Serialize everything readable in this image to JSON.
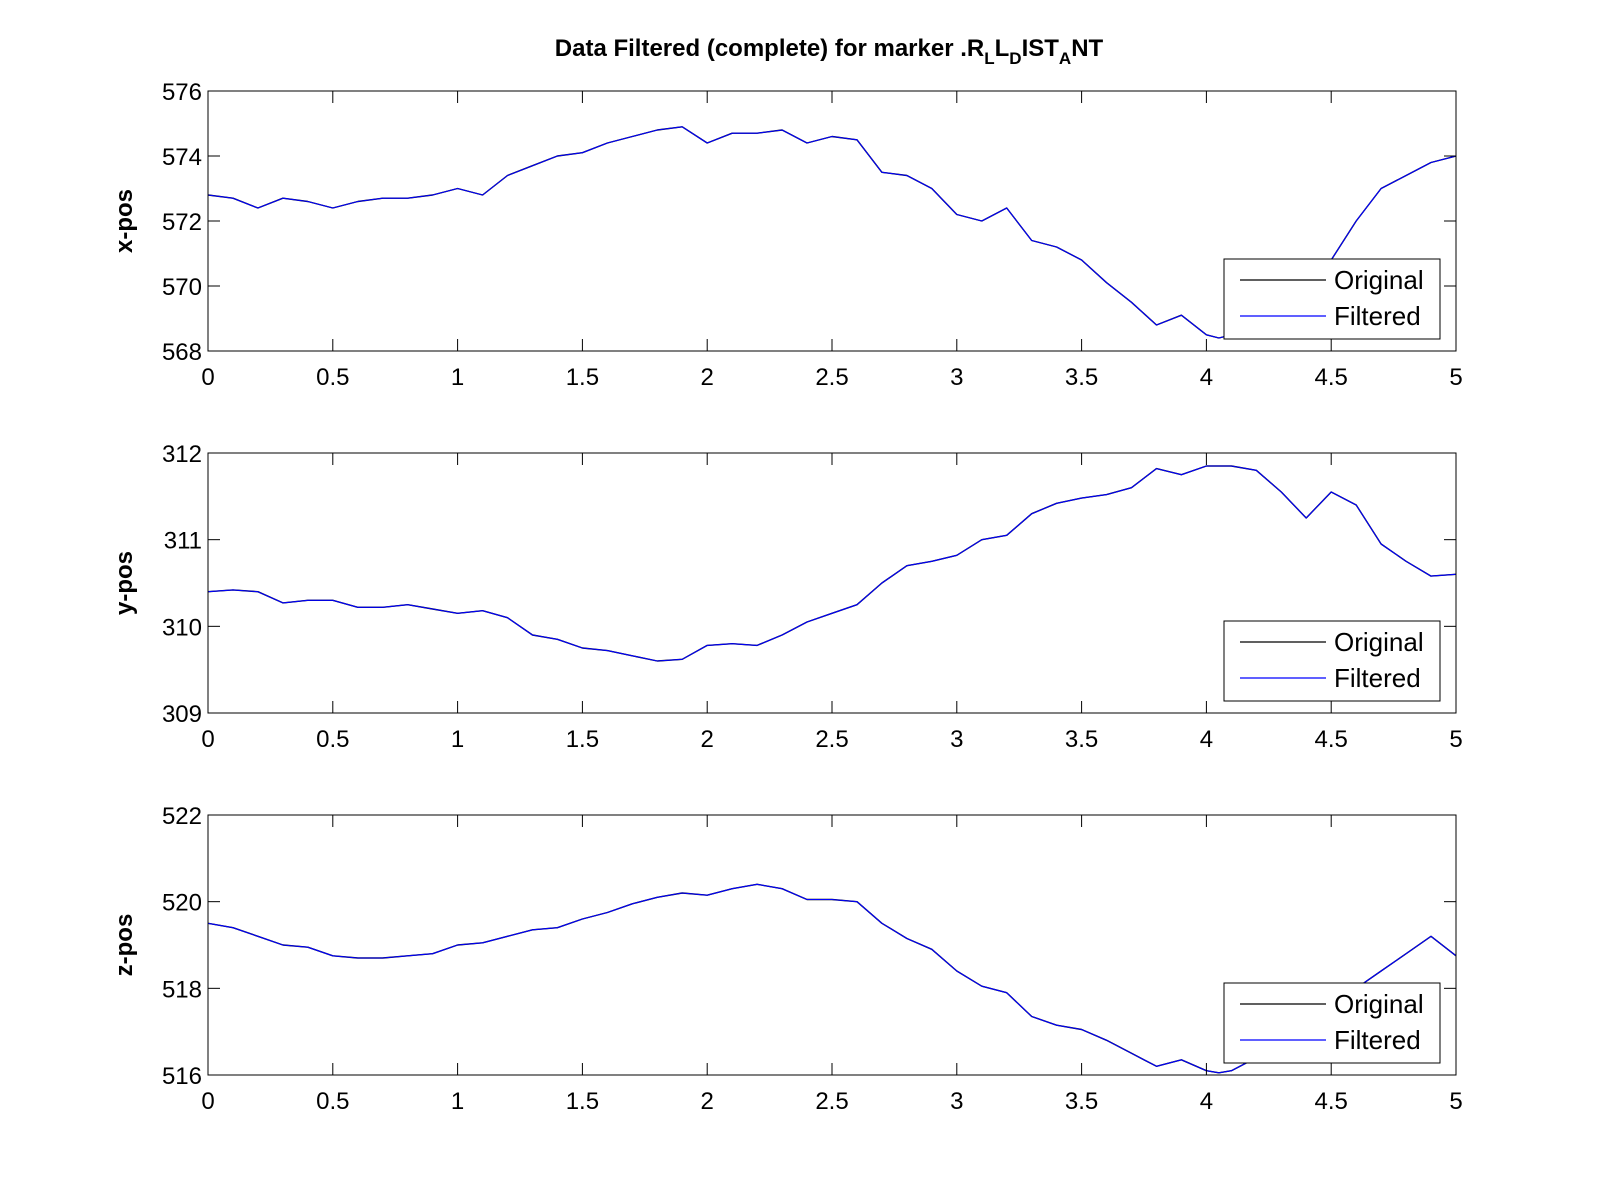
{
  "title": {
    "prefix": "Data Filtered (complete) for marker .R",
    "parts": [
      {
        "text": "L",
        "sub": true
      },
      {
        "text": "L",
        "sub": false
      },
      {
        "text": "D",
        "sub": true
      },
      {
        "text": "IST",
        "sub": false
      },
      {
        "text": "A",
        "sub": true
      },
      {
        "text": "NT",
        "sub": false
      }
    ]
  },
  "chart_data": [
    {
      "type": "line",
      "ylabel": "x-pos",
      "xlim": [
        0,
        5
      ],
      "ylim": [
        568,
        576
      ],
      "xticks": [
        0,
        0.5,
        1,
        1.5,
        2,
        2.5,
        3,
        3.5,
        4,
        4.5,
        5
      ],
      "xtick_labels": [
        "0",
        "0.5",
        "1",
        "1.5",
        "2",
        "2.5",
        "3",
        "3.5",
        "4",
        "4.5",
        "5"
      ],
      "yticks": [
        568,
        570,
        572,
        574,
        576
      ],
      "ytick_labels": [
        "568",
        "570",
        "572",
        "574",
        "576"
      ],
      "legend": {
        "placement": "bottom-right",
        "entries": [
          "Original",
          "Filtered"
        ]
      },
      "series": [
        {
          "name": "Original",
          "color": "#000000",
          "x": [
            0,
            0.1,
            0.2,
            0.3,
            0.4,
            0.5,
            0.6,
            0.7,
            0.8,
            0.9,
            1.0,
            1.1,
            1.2,
            1.3,
            1.4,
            1.5,
            1.6,
            1.7,
            1.8,
            1.9,
            2.0,
            2.1,
            2.2,
            2.3,
            2.4,
            2.5,
            2.6,
            2.7,
            2.8,
            2.9,
            3.0,
            3.1,
            3.2,
            3.3,
            3.4,
            3.5,
            3.6,
            3.7,
            3.8,
            3.9,
            4.0,
            4.05,
            4.1,
            4.2,
            4.3,
            4.4,
            4.5,
            4.6,
            4.7,
            4.8,
            4.9,
            5.0
          ],
          "y": [
            572.8,
            572.7,
            572.4,
            572.7,
            572.6,
            572.4,
            572.6,
            572.7,
            572.7,
            572.8,
            573.0,
            572.8,
            573.4,
            573.7,
            574.0,
            574.1,
            574.4,
            574.6,
            574.8,
            574.9,
            574.4,
            574.7,
            574.7,
            574.8,
            574.4,
            574.6,
            574.5,
            573.5,
            573.4,
            573.0,
            572.2,
            572.0,
            572.4,
            571.4,
            571.2,
            570.8,
            570.1,
            569.5,
            568.8,
            569.1,
            568.5,
            568.4,
            568.5,
            568.8,
            569.3,
            569.9,
            570.8,
            572.0,
            573.0,
            573.4,
            573.8,
            574.0
          ]
        },
        {
          "name": "Filtered",
          "color": "#0000ff",
          "x": [
            0,
            0.1,
            0.2,
            0.3,
            0.4,
            0.5,
            0.6,
            0.7,
            0.8,
            0.9,
            1.0,
            1.1,
            1.2,
            1.3,
            1.4,
            1.5,
            1.6,
            1.7,
            1.8,
            1.9,
            2.0,
            2.1,
            2.2,
            2.3,
            2.4,
            2.5,
            2.6,
            2.7,
            2.8,
            2.9,
            3.0,
            3.1,
            3.2,
            3.3,
            3.4,
            3.5,
            3.6,
            3.7,
            3.8,
            3.9,
            4.0,
            4.05,
            4.1,
            4.2,
            4.3,
            4.4,
            4.5,
            4.6,
            4.7,
            4.8,
            4.9,
            5.0
          ],
          "y": [
            572.8,
            572.7,
            572.4,
            572.7,
            572.6,
            572.4,
            572.6,
            572.7,
            572.7,
            572.8,
            573.0,
            572.8,
            573.4,
            573.7,
            574.0,
            574.1,
            574.4,
            574.6,
            574.8,
            574.9,
            574.4,
            574.7,
            574.7,
            574.8,
            574.4,
            574.6,
            574.5,
            573.5,
            573.4,
            573.0,
            572.2,
            572.0,
            572.4,
            571.4,
            571.2,
            570.8,
            570.1,
            569.5,
            568.8,
            569.1,
            568.5,
            568.4,
            568.5,
            568.8,
            569.3,
            569.9,
            570.8,
            572.0,
            573.0,
            573.4,
            573.8,
            574.0
          ]
        }
      ]
    },
    {
      "type": "line",
      "ylabel": "y-pos",
      "xlim": [
        0,
        5
      ],
      "ylim": [
        309,
        312
      ],
      "xticks": [
        0,
        0.5,
        1,
        1.5,
        2,
        2.5,
        3,
        3.5,
        4,
        4.5,
        5
      ],
      "xtick_labels": [
        "0",
        "0.5",
        "1",
        "1.5",
        "2",
        "2.5",
        "3",
        "3.5",
        "4",
        "4.5",
        "5"
      ],
      "yticks": [
        309,
        310,
        311,
        312
      ],
      "ytick_labels": [
        "309",
        "310",
        "311",
        "312"
      ],
      "legend": {
        "placement": "bottom-right",
        "entries": [
          "Original",
          "Filtered"
        ]
      },
      "series": [
        {
          "name": "Original",
          "color": "#000000",
          "x": [
            0,
            0.1,
            0.2,
            0.3,
            0.4,
            0.5,
            0.6,
            0.7,
            0.8,
            0.9,
            1.0,
            1.1,
            1.2,
            1.3,
            1.4,
            1.5,
            1.6,
            1.7,
            1.8,
            1.9,
            2.0,
            2.1,
            2.2,
            2.3,
            2.4,
            2.5,
            2.6,
            2.7,
            2.8,
            2.9,
            3.0,
            3.1,
            3.2,
            3.3,
            3.4,
            3.5,
            3.6,
            3.7,
            3.8,
            3.9,
            4.0,
            4.1,
            4.2,
            4.3,
            4.4,
            4.5,
            4.6,
            4.7,
            4.8,
            4.9,
            5.0
          ],
          "y": [
            310.4,
            310.42,
            310.4,
            310.27,
            310.3,
            310.3,
            310.22,
            310.22,
            310.25,
            310.2,
            310.15,
            310.18,
            310.1,
            309.9,
            309.85,
            309.75,
            309.72,
            309.66,
            309.6,
            309.62,
            309.78,
            309.8,
            309.78,
            309.9,
            310.05,
            310.15,
            310.25,
            310.5,
            310.7,
            310.75,
            310.82,
            311.0,
            311.05,
            311.3,
            311.42,
            311.48,
            311.52,
            311.6,
            311.82,
            311.75,
            311.85,
            311.85,
            311.8,
            311.55,
            311.25,
            311.55,
            311.4,
            310.95,
            310.75,
            310.58,
            310.6
          ]
        },
        {
          "name": "Filtered",
          "color": "#0000ff",
          "x": [
            0,
            0.1,
            0.2,
            0.3,
            0.4,
            0.5,
            0.6,
            0.7,
            0.8,
            0.9,
            1.0,
            1.1,
            1.2,
            1.3,
            1.4,
            1.5,
            1.6,
            1.7,
            1.8,
            1.9,
            2.0,
            2.1,
            2.2,
            2.3,
            2.4,
            2.5,
            2.6,
            2.7,
            2.8,
            2.9,
            3.0,
            3.1,
            3.2,
            3.3,
            3.4,
            3.5,
            3.6,
            3.7,
            3.8,
            3.9,
            4.0,
            4.1,
            4.2,
            4.3,
            4.4,
            4.5,
            4.6,
            4.7,
            4.8,
            4.9,
            5.0
          ],
          "y": [
            310.4,
            310.42,
            310.4,
            310.27,
            310.3,
            310.3,
            310.22,
            310.22,
            310.25,
            310.2,
            310.15,
            310.18,
            310.1,
            309.9,
            309.85,
            309.75,
            309.72,
            309.66,
            309.6,
            309.62,
            309.78,
            309.8,
            309.78,
            309.9,
            310.05,
            310.15,
            310.25,
            310.5,
            310.7,
            310.75,
            310.82,
            311.0,
            311.05,
            311.3,
            311.42,
            311.48,
            311.52,
            311.6,
            311.82,
            311.75,
            311.85,
            311.85,
            311.8,
            311.55,
            311.25,
            311.55,
            311.4,
            310.95,
            310.75,
            310.58,
            310.6
          ]
        }
      ]
    },
    {
      "type": "line",
      "ylabel": "z-pos",
      "xlim": [
        0,
        5
      ],
      "ylim": [
        516,
        522
      ],
      "xticks": [
        0,
        0.5,
        1,
        1.5,
        2,
        2.5,
        3,
        3.5,
        4,
        4.5,
        5
      ],
      "xtick_labels": [
        "0",
        "0.5",
        "1",
        "1.5",
        "2",
        "2.5",
        "3",
        "3.5",
        "4",
        "4.5",
        "5"
      ],
      "yticks": [
        516,
        518,
        520,
        522
      ],
      "ytick_labels": [
        "516",
        "518",
        "520",
        "522"
      ],
      "legend": {
        "placement": "bottom-right",
        "entries": [
          "Original",
          "Filtered"
        ]
      },
      "series": [
        {
          "name": "Original",
          "color": "#000000",
          "x": [
            0,
            0.1,
            0.2,
            0.3,
            0.4,
            0.5,
            0.6,
            0.7,
            0.8,
            0.9,
            1.0,
            1.1,
            1.2,
            1.3,
            1.4,
            1.5,
            1.6,
            1.7,
            1.8,
            1.9,
            2.0,
            2.1,
            2.2,
            2.3,
            2.4,
            2.5,
            2.6,
            2.7,
            2.8,
            2.9,
            3.0,
            3.1,
            3.2,
            3.3,
            3.4,
            3.5,
            3.6,
            3.7,
            3.8,
            3.9,
            4.0,
            4.05,
            4.1,
            4.2,
            4.3,
            4.4,
            4.5,
            4.6,
            4.7,
            4.8,
            4.9,
            5.0
          ],
          "y": [
            519.5,
            519.4,
            519.2,
            519.0,
            518.95,
            518.75,
            518.7,
            518.7,
            518.75,
            518.8,
            519.0,
            519.05,
            519.2,
            519.35,
            519.4,
            519.6,
            519.75,
            519.95,
            520.1,
            520.2,
            520.15,
            520.3,
            520.4,
            520.3,
            520.05,
            520.05,
            520.0,
            519.5,
            519.15,
            518.9,
            518.4,
            518.05,
            517.9,
            517.35,
            517.15,
            517.05,
            516.8,
            516.5,
            516.2,
            516.35,
            516.1,
            516.05,
            516.1,
            516.4,
            516.8,
            517.2,
            517.6,
            518.0,
            518.4,
            518.8,
            519.2,
            518.75
          ]
        },
        {
          "name": "Filtered",
          "color": "#0000ff",
          "x": [
            0,
            0.1,
            0.2,
            0.3,
            0.4,
            0.5,
            0.6,
            0.7,
            0.8,
            0.9,
            1.0,
            1.1,
            1.2,
            1.3,
            1.4,
            1.5,
            1.6,
            1.7,
            1.8,
            1.9,
            2.0,
            2.1,
            2.2,
            2.3,
            2.4,
            2.5,
            2.6,
            2.7,
            2.8,
            2.9,
            3.0,
            3.1,
            3.2,
            3.3,
            3.4,
            3.5,
            3.6,
            3.7,
            3.8,
            3.9,
            4.0,
            4.05,
            4.1,
            4.2,
            4.3,
            4.4,
            4.5,
            4.6,
            4.7,
            4.8,
            4.9,
            5.0
          ],
          "y": [
            519.5,
            519.4,
            519.2,
            519.0,
            518.95,
            518.75,
            518.7,
            518.7,
            518.75,
            518.8,
            519.0,
            519.05,
            519.2,
            519.35,
            519.4,
            519.6,
            519.75,
            519.95,
            520.1,
            520.2,
            520.15,
            520.3,
            520.4,
            520.3,
            520.05,
            520.05,
            520.0,
            519.5,
            519.15,
            518.9,
            518.4,
            518.05,
            517.9,
            517.35,
            517.15,
            517.05,
            516.8,
            516.5,
            516.2,
            516.35,
            516.1,
            516.05,
            516.1,
            516.4,
            516.8,
            517.2,
            517.6,
            518.0,
            518.4,
            518.8,
            519.2,
            518.75
          ]
        }
      ]
    }
  ]
}
